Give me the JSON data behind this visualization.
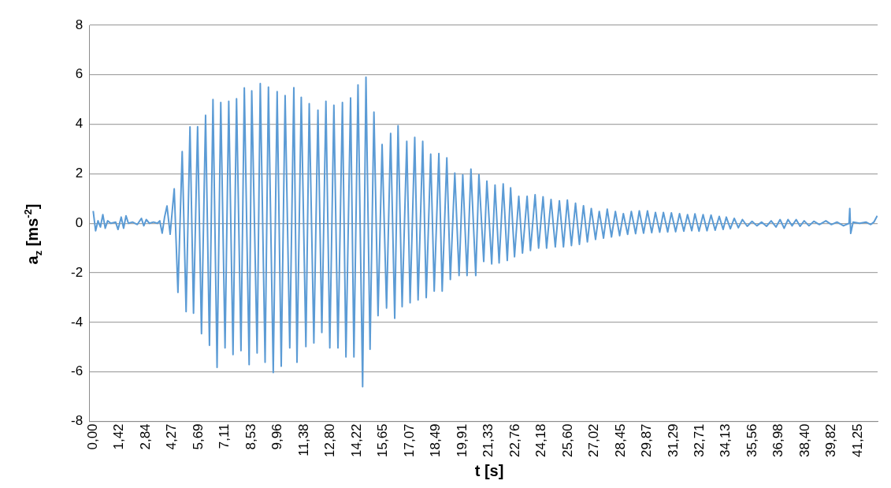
{
  "chart_data": {
    "type": "line",
    "xlabel": "t [s]",
    "ylabel": "a$_{z}$ [ms$^{-2}$]",
    "x": [
      0,
      0.13,
      0.26,
      0.39,
      0.52,
      0.65,
      0.78,
      0.95,
      1.21,
      1.34,
      1.51,
      1.64,
      1.77,
      1.9,
      2.12,
      2.38,
      2.6,
      2.73,
      2.86,
      3.03,
      3.25,
      3.46,
      3.59,
      3.72,
      3.85,
      3.98,
      4.15,
      4.37,
      4.57,
      4.8,
      5.01,
      5.22,
      5.41,
      5.63,
      5.84,
      6.06,
      6.27,
      6.46,
      6.68,
      6.88,
      7.11,
      7.31,
      7.54,
      7.73,
      7.97,
      8.15,
      8.41,
      8.55,
      8.84,
      9.01,
      9.27,
      9.45,
      9.71,
      9.92,
      10.14,
      10.35,
      10.6,
      10.82,
      10.99,
      11.22,
      11.47,
      11.65,
      11.9,
      12.12,
      12.33,
      12.55,
      12.76,
      12.98,
      13.2,
      13.44,
      13.63,
      13.88,
      14.06,
      14.28,
      14.53,
      14.71,
      14.93,
      15.14,
      15.36,
      15.58,
      15.82,
      16.04,
      16.26,
      16.44,
      16.66,
      16.91,
      17.09,
      17.34,
      17.52,
      17.77,
      17.96,
      18.2,
      18.39,
      18.64,
      18.82,
      19.07,
      19.26,
      19.5,
      19.73,
      19.93,
      20.16,
      20.37,
      20.63,
      20.8,
      21.06,
      21.23,
      21.49,
      21.67,
      21.89,
      22.11,
      22.33,
      22.51,
      22.72,
      22.95,
      23.15,
      23.4,
      23.58,
      23.83,
      24.02,
      24.26,
      24.45,
      24.69,
      24.92,
      25.14,
      25.36,
      25.57,
      25.79,
      26.01,
      26.22,
      26.44,
      26.65,
      26.86,
      27.09,
      27.29,
      27.52,
      27.72,
      27.95,
      28.16,
      28.39,
      28.59,
      28.82,
      29.02,
      29.25,
      29.45,
      29.68,
      29.89,
      30.12,
      30.32,
      30.55,
      30.75,
      30.98,
      31.18,
      31.41,
      31.62,
      31.85,
      32.05,
      32.28,
      32.45,
      32.67,
      32.89,
      33.1,
      33.32,
      33.54,
      33.76,
      33.97,
      34.14,
      34.36,
      34.57,
      34.79,
      35.01,
      35.27,
      35.53,
      35.79,
      36.05,
      36.31,
      36.56,
      36.82,
      37.04,
      37.26,
      37.47,
      37.69,
      37.91,
      38.12,
      38.34,
      38.6,
      38.86,
      39.16,
      39.51,
      39.81,
      40.11,
      40.46,
      40.76,
      40.8,
      40.85,
      40.98,
      41.33,
      41.67,
      41.93,
      42.1,
      42.28
    ],
    "series": [
      {
        "color": "#5b9bd5",
        "values": [
          0.5,
          -0.3,
          0.1,
          -0.15,
          0.35,
          -0.2,
          0.1,
          0.0,
          0.05,
          -0.25,
          0.25,
          -0.2,
          0.3,
          0.0,
          0.05,
          -0.05,
          0.2,
          -0.1,
          0.15,
          0.0,
          0.05,
          0.0,
          0.1,
          -0.4,
          0.25,
          0.7,
          -0.44,
          1.39,
          -2.79,
          2.9,
          -3.57,
          3.89,
          -3.63,
          3.9,
          -4.46,
          4.36,
          -4.93,
          5.0,
          -5.82,
          4.88,
          -5.03,
          4.93,
          -5.3,
          5.03,
          -5.14,
          5.47,
          -5.71,
          5.35,
          -5.24,
          5.64,
          -5.61,
          5.5,
          -6.03,
          5.32,
          -5.77,
          5.16,
          -5.03,
          5.48,
          -5.61,
          5.09,
          -4.98,
          4.83,
          -4.83,
          4.57,
          -4.41,
          4.93,
          -5.03,
          4.77,
          -5.03,
          4.88,
          -5.4,
          5.06,
          -5.4,
          5.59,
          -6.6,
          5.9,
          -5.09,
          4.49,
          -3.73,
          3.18,
          -3.42,
          3.63,
          -3.84,
          3.94,
          -3.37,
          3.31,
          -3.21,
          3.47,
          -3.1,
          3.31,
          -3.0,
          2.79,
          -2.74,
          2.82,
          -2.74,
          2.64,
          -2.27,
          2.03,
          -2.11,
          1.96,
          -2.11,
          2.19,
          -2.11,
          1.96,
          -1.54,
          1.7,
          -1.64,
          1.54,
          -1.6,
          1.59,
          -1.5,
          1.43,
          -1.35,
          1.09,
          -1.2,
          1.09,
          -1.1,
          1.15,
          -1.0,
          1.07,
          -1.0,
          0.96,
          -0.95,
          0.91,
          -0.95,
          0.94,
          -0.9,
          0.81,
          -0.85,
          0.71,
          -0.75,
          0.6,
          -0.65,
          0.48,
          -0.6,
          0.57,
          -0.55,
          0.48,
          -0.5,
          0.39,
          -0.45,
          0.48,
          -0.42,
          0.5,
          -0.4,
          0.5,
          -0.38,
          0.44,
          -0.36,
          0.44,
          -0.35,
          0.42,
          -0.34,
          0.39,
          -0.32,
          0.35,
          -0.3,
          0.38,
          -0.32,
          0.35,
          -0.3,
          0.33,
          -0.28,
          0.28,
          -0.25,
          0.25,
          -0.22,
          0.2,
          -0.18,
          0.15,
          -0.12,
          0.08,
          -0.1,
          0.05,
          -0.12,
          0.1,
          -0.15,
          0.15,
          -0.2,
          0.15,
          -0.1,
          0.15,
          -0.12,
          0.1,
          -0.1,
          0.08,
          -0.05,
          0.1,
          -0.05,
          0.05,
          -0.1,
          0.0,
          0.6,
          -0.41,
          0.05,
          0.0,
          0.05,
          -0.05,
          0.05,
          0.3
        ]
      }
    ],
    "xlim": [
      -0.22,
      42.3
    ],
    "xticks": [
      {
        "value": 0,
        "label": "0,00"
      },
      {
        "value": 1.42,
        "label": "1,42"
      },
      {
        "value": 2.84,
        "label": "2,84"
      },
      {
        "value": 4.27,
        "label": "4,27"
      },
      {
        "value": 5.69,
        "label": "5,69"
      },
      {
        "value": 7.11,
        "label": "7,11"
      },
      {
        "value": 8.53,
        "label": "8,53"
      },
      {
        "value": 9.96,
        "label": "9,96"
      },
      {
        "value": 11.38,
        "label": "11,38"
      },
      {
        "value": 12.8,
        "label": "12,80"
      },
      {
        "value": 14.22,
        "label": "14,22"
      },
      {
        "value": 15.65,
        "label": "15,65"
      },
      {
        "value": 17.07,
        "label": "17,07"
      },
      {
        "value": 18.49,
        "label": "18,49"
      },
      {
        "value": 19.91,
        "label": "19,91"
      },
      {
        "value": 21.33,
        "label": "21,33"
      },
      {
        "value": 22.76,
        "label": "22,76"
      },
      {
        "value": 24.18,
        "label": "24,18"
      },
      {
        "value": 25.6,
        "label": "25,60"
      },
      {
        "value": 27.02,
        "label": "27,02"
      },
      {
        "value": 28.45,
        "label": "28,45"
      },
      {
        "value": 29.87,
        "label": "29,87"
      },
      {
        "value": 31.29,
        "label": "31,29"
      },
      {
        "value": 32.71,
        "label": "32,71"
      },
      {
        "value": 34.13,
        "label": "34,13"
      },
      {
        "value": 35.56,
        "label": "35,56"
      },
      {
        "value": 36.98,
        "label": "36,98"
      },
      {
        "value": 38.4,
        "label": "38,40"
      },
      {
        "value": 39.82,
        "label": "39,82"
      },
      {
        "value": 41.25,
        "label": "41,25"
      }
    ],
    "ylim": [
      -8,
      8
    ],
    "yticks": [
      -8,
      -6,
      -4,
      -2,
      0,
      2,
      4,
      6,
      8
    ],
    "grid": "y",
    "marker": "none",
    "line_style": "solid",
    "legend": false
  }
}
